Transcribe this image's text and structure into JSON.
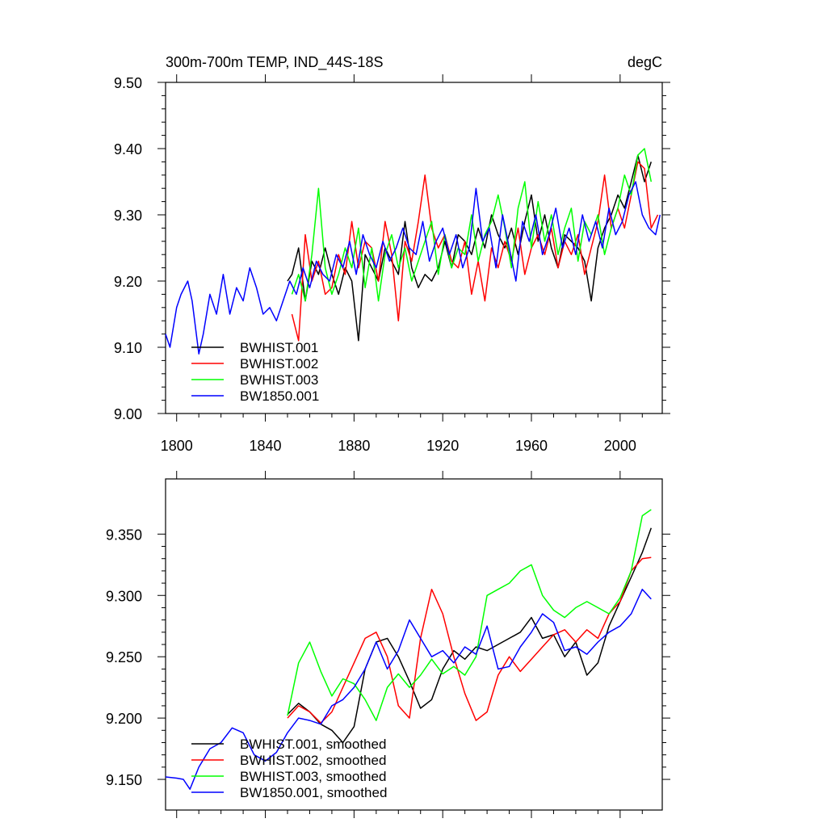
{
  "chart_data": [
    {
      "type": "line",
      "title": "300m-700m TEMP, IND_44S-18S",
      "units": "degC",
      "xlim": [
        1795,
        2019
      ],
      "ylim": [
        9.0,
        9.5
      ],
      "x_ticks": [
        "1800",
        "1840",
        "1880",
        "1920",
        "1960",
        "2000"
      ],
      "y_ticks": [
        "9.00",
        "9.10",
        "9.20",
        "9.30",
        "9.40",
        "9.50"
      ],
      "grid": false,
      "legend_position": "lower-left",
      "series": [
        {
          "name": "BWHIST.001",
          "color": "#000000",
          "x": [
            1850,
            1852,
            1855,
            1858,
            1861,
            1864,
            1867,
            1870,
            1873,
            1876,
            1879,
            1882,
            1885,
            1888,
            1891,
            1894,
            1897,
            1900,
            1903,
            1906,
            1909,
            1912,
            1915,
            1918,
            1921,
            1924,
            1927,
            1930,
            1933,
            1936,
            1939,
            1942,
            1945,
            1948,
            1951,
            1954,
            1957,
            1960,
            1963,
            1966,
            1969,
            1972,
            1975,
            1978,
            1981,
            1984,
            1987,
            1990,
            1993,
            1996,
            1999,
            2002,
            2005,
            2008,
            2011,
            2014
          ],
          "y": [
            9.2,
            9.21,
            9.25,
            9.17,
            9.23,
            9.21,
            9.25,
            9.21,
            9.18,
            9.22,
            9.2,
            9.11,
            9.24,
            9.22,
            9.2,
            9.25,
            9.23,
            9.21,
            9.29,
            9.22,
            9.19,
            9.21,
            9.2,
            9.22,
            9.26,
            9.22,
            9.27,
            9.26,
            9.24,
            9.28,
            9.25,
            9.3,
            9.27,
            9.25,
            9.28,
            9.24,
            9.29,
            9.33,
            9.26,
            9.3,
            9.25,
            9.22,
            9.27,
            9.26,
            9.25,
            9.23,
            9.17,
            9.25,
            9.28,
            9.3,
            9.33,
            9.31,
            9.35,
            9.39,
            9.35,
            9.38
          ]
        },
        {
          "name": "BWHIST.002",
          "color": "#ff0000",
          "x": [
            1852,
            1855,
            1858,
            1861,
            1864,
            1867,
            1870,
            1873,
            1876,
            1879,
            1882,
            1885,
            1888,
            1891,
            1894,
            1897,
            1900,
            1903,
            1906,
            1909,
            1912,
            1915,
            1918,
            1921,
            1924,
            1927,
            1930,
            1933,
            1936,
            1939,
            1942,
            1945,
            1948,
            1951,
            1954,
            1957,
            1960,
            1963,
            1966,
            1969,
            1972,
            1975,
            1978,
            1981,
            1984,
            1987,
            1990,
            1993,
            1996,
            1999,
            2002,
            2005,
            2008,
            2011,
            2014,
            2017
          ],
          "y": [
            9.15,
            9.11,
            9.27,
            9.2,
            9.23,
            9.18,
            9.19,
            9.24,
            9.21,
            9.29,
            9.22,
            9.26,
            9.25,
            9.2,
            9.29,
            9.24,
            9.14,
            9.26,
            9.23,
            9.29,
            9.36,
            9.28,
            9.25,
            9.27,
            9.23,
            9.22,
            9.26,
            9.18,
            9.23,
            9.17,
            9.25,
            9.22,
            9.26,
            9.23,
            9.28,
            9.21,
            9.25,
            9.27,
            9.24,
            9.28,
            9.22,
            9.26,
            9.24,
            9.27,
            9.21,
            9.25,
            9.29,
            9.36,
            9.28,
            9.31,
            9.28,
            9.33,
            9.38,
            9.37,
            9.28,
            9.3
          ]
        },
        {
          "name": "BWHIST.003",
          "color": "#00ff00",
          "x": [
            1852,
            1855,
            1858,
            1861,
            1864,
            1867,
            1870,
            1873,
            1876,
            1879,
            1882,
            1885,
            1888,
            1891,
            1894,
            1897,
            1900,
            1903,
            1906,
            1909,
            1912,
            1915,
            1918,
            1921,
            1924,
            1927,
            1930,
            1933,
            1936,
            1939,
            1942,
            1945,
            1948,
            1951,
            1954,
            1957,
            1960,
            1963,
            1966,
            1969,
            1972,
            1975,
            1978,
            1981,
            1984,
            1987,
            1990,
            1993,
            1996,
            1999,
            2002,
            2005,
            2008,
            2011,
            2014
          ],
          "y": [
            9.18,
            9.21,
            9.17,
            9.24,
            9.34,
            9.22,
            9.18,
            9.21,
            9.25,
            9.22,
            9.28,
            9.19,
            9.25,
            9.17,
            9.24,
            9.27,
            9.22,
            9.25,
            9.2,
            9.23,
            9.26,
            9.29,
            9.21,
            9.27,
            9.22,
            9.25,
            9.24,
            9.3,
            9.23,
            9.27,
            9.29,
            9.33,
            9.28,
            9.22,
            9.31,
            9.35,
            9.25,
            9.32,
            9.26,
            9.3,
            9.24,
            9.28,
            9.31,
            9.23,
            9.29,
            9.27,
            9.3,
            9.24,
            9.28,
            9.31,
            9.36,
            9.33,
            9.39,
            9.4,
            9.35
          ]
        },
        {
          "name": "BW1850.001",
          "color": "#0000ff",
          "x": [
            1795,
            1797,
            1800,
            1802,
            1805,
            1807,
            1810,
            1812,
            1815,
            1818,
            1821,
            1824,
            1827,
            1830,
            1833,
            1836,
            1839,
            1842,
            1845,
            1848,
            1851,
            1854,
            1857,
            1860,
            1863,
            1866,
            1869,
            1872,
            1875,
            1878,
            1881,
            1884,
            1887,
            1890,
            1893,
            1896,
            1899,
            1902,
            1905,
            1908,
            1911,
            1914,
            1917,
            1920,
            1923,
            1926,
            1929,
            1932,
            1935,
            1938,
            1941,
            1944,
            1947,
            1950,
            1953,
            1956,
            1959,
            1962,
            1965,
            1968,
            1971,
            1974,
            1977,
            1980,
            1983,
            1986,
            1989,
            1992,
            1995,
            1998,
            2001,
            2004,
            2007,
            2010,
            2013,
            2016,
            2018
          ],
          "y": [
            9.12,
            9.1,
            9.16,
            9.18,
            9.2,
            9.17,
            9.09,
            9.12,
            9.18,
            9.15,
            9.21,
            9.15,
            9.19,
            9.17,
            9.22,
            9.19,
            9.15,
            9.16,
            9.14,
            9.17,
            9.2,
            9.18,
            9.22,
            9.19,
            9.23,
            9.21,
            9.2,
            9.24,
            9.22,
            9.26,
            9.21,
            9.27,
            9.24,
            9.22,
            9.26,
            9.23,
            9.25,
            9.28,
            9.25,
            9.24,
            9.29,
            9.23,
            9.26,
            9.28,
            9.24,
            9.27,
            9.22,
            9.25,
            9.34,
            9.26,
            9.28,
            9.22,
            9.3,
            9.25,
            9.2,
            9.29,
            9.26,
            9.3,
            9.24,
            9.27,
            9.31,
            9.25,
            9.28,
            9.24,
            9.3,
            9.26,
            9.29,
            9.25,
            9.31,
            9.27,
            9.29,
            9.33,
            9.35,
            9.3,
            9.28,
            9.27,
            9.3
          ]
        }
      ]
    },
    {
      "type": "line",
      "xlim": [
        1795,
        2019
      ],
      "ylim": [
        9.125,
        9.395
      ],
      "y_ticks": [
        "9.150",
        "9.200",
        "9.250",
        "9.300",
        "9.350"
      ],
      "grid": false,
      "legend_position": "lower-left",
      "series": [
        {
          "name": "BWHIST.001, smoothed",
          "color": "#000000",
          "x": [
            1850,
            1855,
            1860,
            1865,
            1870,
            1875,
            1880,
            1885,
            1890,
            1895,
            1900,
            1905,
            1910,
            1915,
            1920,
            1925,
            1930,
            1935,
            1940,
            1945,
            1950,
            1955,
            1960,
            1965,
            1970,
            1975,
            1980,
            1985,
            1990,
            1995,
            2000,
            2005,
            2010,
            2014
          ],
          "y": [
            9.203,
            9.212,
            9.205,
            9.195,
            9.19,
            9.18,
            9.193,
            9.24,
            9.262,
            9.265,
            9.25,
            9.23,
            9.208,
            9.215,
            9.24,
            9.255,
            9.248,
            9.258,
            9.255,
            9.26,
            9.265,
            9.27,
            9.282,
            9.265,
            9.268,
            9.25,
            9.262,
            9.235,
            9.245,
            9.275,
            9.295,
            9.315,
            9.335,
            9.355
          ]
        },
        {
          "name": "BWHIST.002, smoothed",
          "color": "#ff0000",
          "x": [
            1850,
            1855,
            1860,
            1865,
            1870,
            1875,
            1880,
            1885,
            1890,
            1895,
            1900,
            1905,
            1910,
            1915,
            1920,
            1925,
            1930,
            1935,
            1940,
            1945,
            1950,
            1955,
            1960,
            1965,
            1970,
            1975,
            1980,
            1985,
            1990,
            1995,
            2000,
            2005,
            2010,
            2014
          ],
          "y": [
            9.2,
            9.21,
            9.205,
            9.196,
            9.205,
            9.225,
            9.245,
            9.265,
            9.27,
            9.25,
            9.21,
            9.2,
            9.265,
            9.305,
            9.285,
            9.25,
            9.22,
            9.198,
            9.205,
            9.235,
            9.25,
            9.238,
            9.248,
            9.258,
            9.268,
            9.272,
            9.262,
            9.272,
            9.265,
            9.285,
            9.295,
            9.32,
            9.33,
            9.331
          ]
        },
        {
          "name": "BWHIST.003, smoothed",
          "color": "#00ff00",
          "x": [
            1850,
            1855,
            1860,
            1865,
            1870,
            1875,
            1880,
            1885,
            1890,
            1895,
            1900,
            1905,
            1910,
            1915,
            1920,
            1925,
            1930,
            1935,
            1940,
            1945,
            1950,
            1955,
            1960,
            1965,
            1970,
            1975,
            1980,
            1985,
            1990,
            1995,
            2000,
            2005,
            2010,
            2014
          ],
          "y": [
            9.202,
            9.245,
            9.262,
            9.238,
            9.218,
            9.232,
            9.228,
            9.215,
            9.198,
            9.225,
            9.236,
            9.225,
            9.235,
            9.248,
            9.236,
            9.242,
            9.235,
            9.25,
            9.3,
            9.305,
            9.31,
            9.32,
            9.325,
            9.3,
            9.288,
            9.282,
            9.29,
            9.295,
            9.29,
            9.285,
            9.298,
            9.32,
            9.365,
            9.37
          ]
        },
        {
          "name": "BW1850.001, smoothed",
          "color": "#0000ff",
          "x": [
            1795,
            1800,
            1803,
            1806,
            1810,
            1815,
            1820,
            1825,
            1830,
            1835,
            1840,
            1845,
            1850,
            1855,
            1860,
            1865,
            1870,
            1875,
            1880,
            1885,
            1890,
            1895,
            1900,
            1905,
            1910,
            1915,
            1920,
            1925,
            1930,
            1935,
            1940,
            1945,
            1950,
            1955,
            1960,
            1965,
            1970,
            1975,
            1980,
            1985,
            1990,
            1995,
            2000,
            2005,
            2010,
            2014
          ],
          "y": [
            9.152,
            9.151,
            9.15,
            9.142,
            9.16,
            9.175,
            9.18,
            9.192,
            9.188,
            9.17,
            9.165,
            9.172,
            9.188,
            9.2,
            9.198,
            9.195,
            9.21,
            9.215,
            9.225,
            9.24,
            9.262,
            9.24,
            9.255,
            9.28,
            9.265,
            9.25,
            9.255,
            9.245,
            9.258,
            9.252,
            9.275,
            9.24,
            9.242,
            9.258,
            9.27,
            9.285,
            9.278,
            9.255,
            9.258,
            9.252,
            9.262,
            9.27,
            9.275,
            9.285,
            9.305,
            9.297
          ]
        }
      ]
    }
  ]
}
